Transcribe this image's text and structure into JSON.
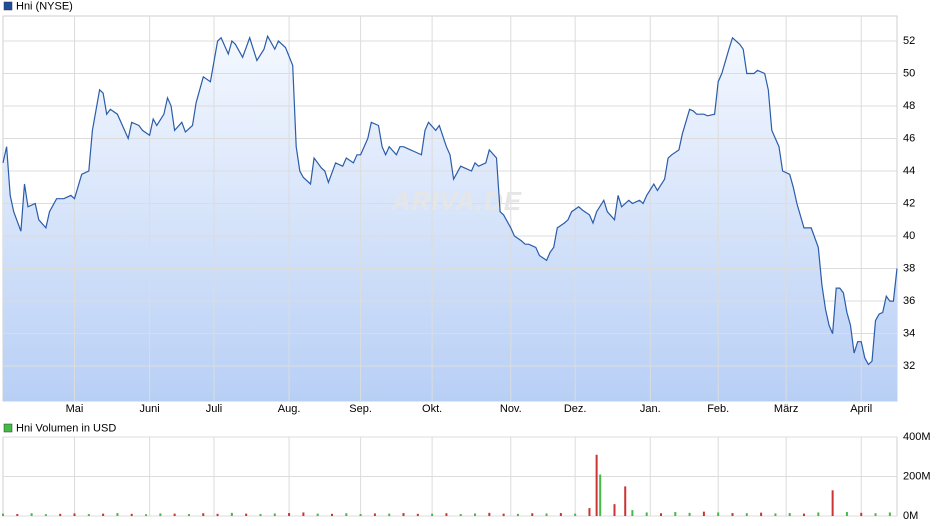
{
  "chart_data": [
    {
      "type": "line",
      "legend": "Hni (NYSE)",
      "color": "#2a5caa",
      "watermark": "ARIVA.DE",
      "xlim": [
        0,
        250
      ],
      "ylim": [
        29.85,
        53.54
      ],
      "xticks": [
        {
          "value": 20,
          "label": "Mai"
        },
        {
          "value": 41,
          "label": "Juni"
        },
        {
          "value": 59,
          "label": "Juli"
        },
        {
          "value": 80,
          "label": "Aug."
        },
        {
          "value": 100,
          "label": "Sep."
        },
        {
          "value": 120,
          "label": "Okt."
        },
        {
          "value": 142,
          "label": "Nov."
        },
        {
          "value": 160,
          "label": "Dez."
        },
        {
          "value": 181,
          "label": "Jan."
        },
        {
          "value": 200,
          "label": "Feb."
        },
        {
          "value": 219,
          "label": "März"
        },
        {
          "value": 240,
          "label": "April"
        }
      ],
      "yticks": [
        32,
        34,
        36,
        38,
        40,
        42,
        44,
        46,
        48,
        50,
        52
      ],
      "grid": true,
      "x": [
        0,
        1,
        2,
        3,
        5,
        6,
        7,
        9,
        10,
        12,
        13,
        15,
        17,
        19,
        20,
        22,
        24,
        25,
        27,
        28,
        29,
        30,
        32,
        34,
        35,
        36,
        38,
        39,
        41,
        42,
        43,
        45,
        46,
        47,
        48,
        50,
        51,
        53,
        54,
        56,
        58,
        60,
        61,
        63,
        64,
        65,
        67,
        69,
        70,
        71,
        73,
        74,
        76,
        77,
        79,
        81,
        82,
        83,
        84,
        86,
        87,
        89,
        90,
        91,
        93,
        95,
        96,
        98,
        99,
        100,
        102,
        103,
        105,
        106,
        107,
        108,
        110,
        111,
        112,
        114,
        115,
        117,
        118,
        119,
        121,
        122,
        124,
        125,
        126,
        128,
        129,
        131,
        132,
        133,
        135,
        136,
        138,
        139,
        140,
        142,
        143,
        145,
        146,
        147,
        149,
        150,
        152,
        153,
        154,
        155,
        157,
        158,
        159,
        161,
        162,
        164,
        165,
        166,
        168,
        169,
        171,
        172,
        173,
        175,
        176,
        178,
        179,
        180,
        182,
        183,
        185,
        186,
        187,
        189,
        190,
        192,
        193,
        194,
        196,
        197,
        199,
        200,
        201,
        203,
        204,
        206,
        207,
        208,
        210,
        211,
        213,
        214,
        215,
        217,
        218,
        220,
        221,
        222,
        224,
        225,
        226,
        228,
        229,
        230,
        231,
        232,
        233,
        234,
        235,
        236,
        237,
        238,
        239,
        240,
        241,
        242,
        243,
        244,
        245,
        246,
        247,
        248,
        249,
        250
      ],
      "values": [
        44.5,
        45.5,
        42.5,
        41.5,
        40.3,
        43.2,
        41.8,
        42,
        41,
        40.5,
        41.5,
        42.3,
        42.3,
        42.5,
        42.3,
        43.8,
        44,
        46.5,
        49,
        48.8,
        47.5,
        47.8,
        47.5,
        46.5,
        46,
        47,
        46.8,
        46.5,
        46.2,
        47.2,
        46.8,
        47.5,
        48.5,
        48,
        46.5,
        47,
        46.4,
        46.8,
        48.2,
        49.8,
        49.5,
        52,
        52.2,
        51.2,
        52,
        51.8,
        51,
        52.2,
        51.5,
        50.8,
        51.5,
        52.3,
        51.5,
        52,
        51.6,
        50.5,
        45.5,
        44,
        43.6,
        43.2,
        44.8,
        44.2,
        44,
        43.3,
        44.5,
        44.3,
        44.8,
        44.5,
        45,
        45,
        46,
        47,
        46.8,
        45.5,
        45,
        45.5,
        45,
        45.5,
        45.5,
        45.3,
        45.2,
        45,
        46.5,
        47,
        46.5,
        46.8,
        45.5,
        45,
        43.5,
        44.3,
        44.2,
        44,
        44.5,
        44.3,
        44.5,
        45.3,
        44.8,
        41.5,
        41.3,
        40.5,
        40,
        39.7,
        39.5,
        39.5,
        39.3,
        38.8,
        38.5,
        39,
        39.3,
        40.5,
        40.8,
        41,
        41.5,
        41.8,
        41.6,
        41.3,
        40.8,
        41.5,
        42.2,
        41.5,
        41,
        42.5,
        41.8,
        42.2,
        42,
        42.2,
        42,
        42.5,
        43.2,
        42.8,
        43.5,
        44.8,
        45,
        45.3,
        46.3,
        47.8,
        47.7,
        47.5,
        47.5,
        47.4,
        47.5,
        49.5,
        50,
        51.5,
        52.2,
        51.8,
        51.5,
        50,
        50,
        50.2,
        50,
        49,
        46.5,
        45.5,
        44,
        43.8,
        43,
        42,
        40.5,
        40.5,
        40.5,
        39.3,
        37,
        35.5,
        34.5,
        34,
        36.8,
        36.8,
        36.5,
        35.3,
        34.5,
        32.8,
        33.5,
        33.5,
        32.5,
        32.1,
        32.3,
        34.8,
        35.2,
        35.3,
        36.3,
        36,
        36,
        38
      ]
    },
    {
      "type": "bar",
      "legend": "Hni Volumen in USD",
      "color": "#44bb44",
      "xlim": [
        0,
        250
      ],
      "ylim": [
        0,
        400
      ],
      "yticks": [
        {
          "value": 0,
          "label": "0M"
        },
        {
          "value": 200,
          "label": "200M"
        },
        {
          "value": 400,
          "label": "400M"
        }
      ],
      "grid": true,
      "x": [
        0,
        4,
        8,
        12,
        16,
        20,
        24,
        28,
        32,
        36,
        40,
        44,
        48,
        52,
        56,
        60,
        64,
        68,
        72,
        76,
        80,
        84,
        88,
        92,
        96,
        100,
        104,
        108,
        112,
        116,
        120,
        124,
        128,
        132,
        136,
        140,
        144,
        148,
        152,
        156,
        160,
        164,
        166,
        167,
        171,
        174,
        176,
        180,
        184,
        188,
        192,
        196,
        200,
        204,
        208,
        212,
        216,
        220,
        224,
        228,
        232,
        236,
        240,
        244,
        248
      ],
      "values": [
        12,
        10,
        14,
        9,
        11,
        13,
        10,
        12,
        15,
        11,
        9,
        13,
        12,
        10,
        14,
        11,
        16,
        12,
        10,
        13,
        15,
        18,
        12,
        11,
        14,
        10,
        13,
        12,
        15,
        11,
        12,
        14,
        10,
        13,
        16,
        12,
        11,
        14,
        13,
        15,
        12,
        40,
        310,
        210,
        60,
        150,
        30,
        18,
        14,
        20,
        16,
        22,
        18,
        15,
        14,
        17,
        13,
        15,
        12,
        18,
        130,
        20,
        16,
        14,
        18
      ],
      "colors": [
        "#44bb44",
        "#cc3333",
        "#44bb44",
        "#44bb44",
        "#cc3333",
        "#cc3333",
        "#44bb44",
        "#cc3333",
        "#44bb44",
        "#cc3333",
        "#44bb44",
        "#44bb44",
        "#cc3333",
        "#44bb44",
        "#cc3333",
        "#cc3333",
        "#44bb44",
        "#cc3333",
        "#44bb44",
        "#44bb44",
        "#cc3333",
        "#cc3333",
        "#44bb44",
        "#cc3333",
        "#44bb44",
        "#44bb44",
        "#cc3333",
        "#44bb44",
        "#cc3333",
        "#cc3333",
        "#44bb44",
        "#cc3333",
        "#44bb44",
        "#44bb44",
        "#cc3333",
        "#cc3333",
        "#44bb44",
        "#cc3333",
        "#44bb44",
        "#cc3333",
        "#44bb44",
        "#cc3333",
        "#cc3333",
        "#44bb44",
        "#cc3333",
        "#cc3333",
        "#44bb44",
        "#44bb44",
        "#cc3333",
        "#44bb44",
        "#44bb44",
        "#cc3333",
        "#44bb44",
        "#cc3333",
        "#44bb44",
        "#cc3333",
        "#44bb44",
        "#44bb44",
        "#cc3333",
        "#44bb44",
        "#cc3333",
        "#44bb44",
        "#cc3333",
        "#44bb44",
        "#44bb44"
      ]
    }
  ]
}
